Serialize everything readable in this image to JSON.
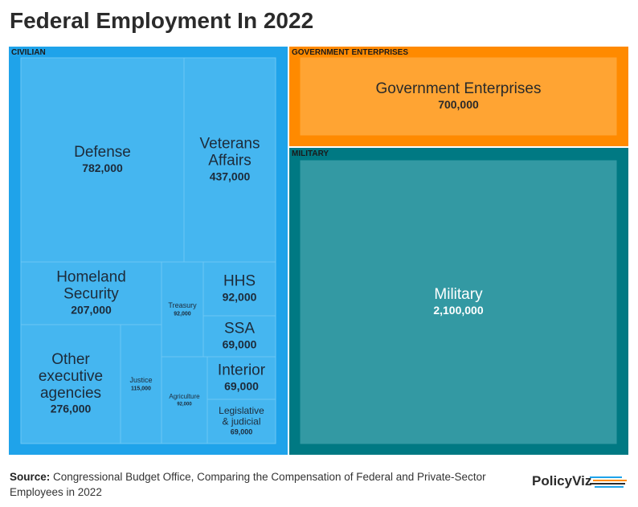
{
  "title": "Federal Employment In 2022",
  "source": {
    "label": "Source:",
    "text": "Congressional Budget Office, Comparing the Compensation of Federal and Private-Sector Employees in 2022"
  },
  "logo": "PolicyViz",
  "colors": {
    "civilian_frame": "#1fa3ea",
    "civilian_cell": "#45b6f0",
    "enterprise_frame": "#ff8a00",
    "enterprise_cell": "#ffa433",
    "military_frame": "#007983",
    "military_cell": "#3399a3"
  },
  "chart_data": {
    "type": "treemap",
    "groups": [
      {
        "name": "CIVILIAN",
        "items": [
          {
            "name": "Defense",
            "label": "782,000",
            "value": 782000
          },
          {
            "name": "Veterans Affairs",
            "label": "437,000",
            "value": 437000
          },
          {
            "name": "Homeland Security",
            "label": "207,000",
            "value": 207000
          },
          {
            "name": "Treasury",
            "label": "92,000",
            "value": 92000
          },
          {
            "name": "HHS",
            "label": "92,000",
            "value": 92000
          },
          {
            "name": "SSA",
            "label": "69,000",
            "value": 69000
          },
          {
            "name": "Other executive agencies",
            "label": "276,000",
            "value": 276000
          },
          {
            "name": "Justice",
            "label": "115,000",
            "value": 115000
          },
          {
            "name": "Agriculture",
            "label": "92,000",
            "value": 92000
          },
          {
            "name": "Interior",
            "label": "69,000",
            "value": 69000
          },
          {
            "name": "Legislative & judicial",
            "label": "69,000",
            "value": 69000
          }
        ]
      },
      {
        "name": "GOVERNMENT ENTERPRISES",
        "items": [
          {
            "name": "Government Enterprises",
            "label": "700,000",
            "value": 700000
          }
        ]
      },
      {
        "name": "MILITARY",
        "items": [
          {
            "name": "Military",
            "label": "2,100,000",
            "value": 2100000
          }
        ]
      }
    ]
  }
}
